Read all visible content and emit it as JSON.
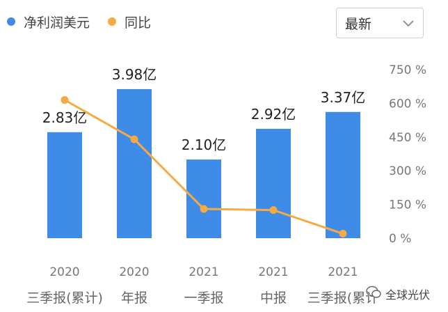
{
  "legend": {
    "net_profit": "净利润美元",
    "yoy": "同比"
  },
  "dropdown": {
    "value": "最新"
  },
  "colors": {
    "bar": "#3f8be8",
    "line": "#f5aa43",
    "grid": "#e6e6e6",
    "text": "#333333"
  },
  "icons": {
    "dropdown": "chevron-down-icon",
    "watermark": "wechat-logo-icon"
  },
  "chart_data": {
    "type": "bar",
    "categories": [
      [
        "2020",
        "三季报(累计)"
      ],
      [
        "2020",
        "年报"
      ],
      [
        "2021",
        "一季报"
      ],
      [
        "2021",
        "中报"
      ],
      [
        "2021",
        "三季报(累计"
      ]
    ],
    "series": [
      {
        "name": "净利润美元",
        "type": "bar",
        "values": [
          2.83,
          3.98,
          2.1,
          2.92,
          3.37
        ],
        "labels": [
          "2.83亿",
          "3.98亿",
          "2.10亿",
          "2.92亿",
          "3.37亿"
        ]
      },
      {
        "name": "同比",
        "type": "line",
        "axis": "right",
        "values": [
          615,
          440,
          130,
          125,
          20
        ]
      }
    ],
    "right_axis": {
      "ticks": [
        "750 %",
        "600 %",
        "450 %",
        "300 %",
        "150 %",
        "0 %"
      ],
      "ylim": [
        0,
        750
      ]
    },
    "left_axis_ylim": [
      0,
      4.5
    ],
    "legend_position": "top-left",
    "grid": false
  },
  "watermark": {
    "text": "全球光伏"
  }
}
